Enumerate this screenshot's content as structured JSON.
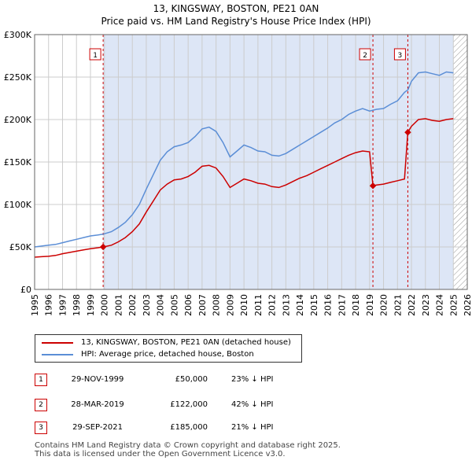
{
  "chart_data": {
    "type": "line",
    "title": "13, KINGSWAY, BOSTON, PE21 0AN",
    "subtitle": "Price paid vs. HM Land Registry's House Price Index (HPI)",
    "xlim": [
      1995,
      2026
    ],
    "ylim": [
      0,
      300000
    ],
    "x_ticks": [
      "1995",
      "1996",
      "1997",
      "1998",
      "1999",
      "2000",
      "2001",
      "2002",
      "2003",
      "2004",
      "2005",
      "2006",
      "2007",
      "2008",
      "2009",
      "2010",
      "2011",
      "2012",
      "2013",
      "2014",
      "2015",
      "2016",
      "2017",
      "2018",
      "2019",
      "2020",
      "2021",
      "2022",
      "2023",
      "2024",
      "2025",
      "2026"
    ],
    "y_ticks": [
      {
        "value": 0,
        "label": "£0"
      },
      {
        "value": 50000,
        "label": "£50K"
      },
      {
        "value": 100000,
        "label": "£100K"
      },
      {
        "value": 150000,
        "label": "£150K"
      },
      {
        "value": 200000,
        "label": "£200K"
      },
      {
        "value": 250000,
        "label": "£250K"
      },
      {
        "value": 300000,
        "label": "£300K"
      }
    ],
    "series": [
      {
        "name": "HPI: Average price, detached house, Boston",
        "color": "#5b8ed6",
        "points": [
          [
            1995.0,
            50000
          ],
          [
            1995.5,
            51000
          ],
          [
            1996.0,
            52000
          ],
          [
            1996.5,
            53000
          ],
          [
            1997.0,
            55000
          ],
          [
            1997.5,
            57000
          ],
          [
            1998.0,
            59000
          ],
          [
            1998.5,
            61000
          ],
          [
            1999.0,
            63000
          ],
          [
            1999.5,
            64000
          ],
          [
            1999.9,
            65000
          ],
          [
            2000.5,
            68000
          ],
          [
            2001.0,
            73000
          ],
          [
            2001.5,
            79000
          ],
          [
            2002.0,
            88000
          ],
          [
            2002.5,
            100000
          ],
          [
            2003.0,
            118000
          ],
          [
            2003.5,
            135000
          ],
          [
            2004.0,
            152000
          ],
          [
            2004.5,
            162000
          ],
          [
            2005.0,
            168000
          ],
          [
            2005.5,
            170000
          ],
          [
            2006.0,
            173000
          ],
          [
            2006.5,
            180000
          ],
          [
            2007.0,
            189000
          ],
          [
            2007.5,
            191000
          ],
          [
            2008.0,
            186000
          ],
          [
            2008.5,
            173000
          ],
          [
            2009.0,
            156000
          ],
          [
            2009.5,
            163000
          ],
          [
            2010.0,
            170000
          ],
          [
            2010.5,
            167000
          ],
          [
            2011.0,
            163000
          ],
          [
            2011.5,
            162000
          ],
          [
            2012.0,
            158000
          ],
          [
            2012.5,
            157000
          ],
          [
            2013.0,
            160000
          ],
          [
            2013.5,
            165000
          ],
          [
            2014.0,
            170000
          ],
          [
            2014.5,
            175000
          ],
          [
            2015.0,
            180000
          ],
          [
            2015.5,
            185000
          ],
          [
            2016.0,
            190000
          ],
          [
            2016.5,
            196000
          ],
          [
            2017.0,
            200000
          ],
          [
            2017.5,
            206000
          ],
          [
            2018.0,
            210000
          ],
          [
            2018.5,
            213000
          ],
          [
            2019.0,
            210000
          ],
          [
            2019.5,
            212000
          ],
          [
            2020.0,
            213000
          ],
          [
            2020.5,
            218000
          ],
          [
            2021.0,
            222000
          ],
          [
            2021.5,
            232000
          ],
          [
            2021.75,
            235000
          ],
          [
            2022.0,
            245000
          ],
          [
            2022.5,
            255000
          ],
          [
            2023.0,
            256000
          ],
          [
            2023.5,
            254000
          ],
          [
            2024.0,
            252000
          ],
          [
            2024.5,
            256000
          ],
          [
            2025.0,
            255000
          ]
        ]
      },
      {
        "name": "13, KINGSWAY, BOSTON, PE21 0AN (detached house)",
        "color": "#cc0000",
        "points": [
          [
            1995.0,
            38000
          ],
          [
            1995.5,
            38500
          ],
          [
            1996.0,
            39000
          ],
          [
            1996.5,
            40000
          ],
          [
            1997.0,
            42000
          ],
          [
            1997.5,
            43500
          ],
          [
            1998.0,
            45000
          ],
          [
            1998.5,
            46500
          ],
          [
            1999.0,
            48000
          ],
          [
            1999.5,
            49000
          ],
          [
            1999.91,
            50000
          ],
          [
            2000.5,
            52000
          ],
          [
            2001.0,
            56000
          ],
          [
            2001.5,
            61000
          ],
          [
            2002.0,
            68000
          ],
          [
            2002.5,
            77000
          ],
          [
            2003.0,
            91000
          ],
          [
            2003.5,
            104000
          ],
          [
            2004.0,
            117000
          ],
          [
            2004.5,
            124000
          ],
          [
            2005.0,
            129000
          ],
          [
            2005.5,
            130000
          ],
          [
            2006.0,
            133000
          ],
          [
            2006.5,
            138000
          ],
          [
            2007.0,
            145000
          ],
          [
            2007.5,
            146000
          ],
          [
            2008.0,
            143000
          ],
          [
            2008.5,
            133000
          ],
          [
            2009.0,
            120000
          ],
          [
            2009.5,
            125000
          ],
          [
            2010.0,
            130000
          ],
          [
            2010.5,
            128000
          ],
          [
            2011.0,
            125000
          ],
          [
            2011.5,
            124000
          ],
          [
            2012.0,
            121000
          ],
          [
            2012.5,
            120000
          ],
          [
            2013.0,
            123000
          ],
          [
            2013.5,
            127000
          ],
          [
            2014.0,
            131000
          ],
          [
            2014.5,
            134000
          ],
          [
            2015.0,
            138000
          ],
          [
            2015.5,
            142000
          ],
          [
            2016.0,
            146000
          ],
          [
            2016.5,
            150000
          ],
          [
            2017.0,
            154000
          ],
          [
            2017.5,
            158000
          ],
          [
            2018.0,
            161000
          ],
          [
            2018.5,
            163000
          ],
          [
            2019.0,
            162000
          ],
          [
            2019.24,
            122000
          ],
          [
            2019.5,
            123000
          ],
          [
            2020.0,
            124000
          ],
          [
            2020.5,
            126000
          ],
          [
            2021.0,
            128000
          ],
          [
            2021.5,
            130000
          ],
          [
            2021.74,
            185000
          ],
          [
            2022.0,
            192000
          ],
          [
            2022.5,
            200000
          ],
          [
            2023.0,
            201000
          ],
          [
            2023.5,
            199000
          ],
          [
            2024.0,
            198000
          ],
          [
            2024.5,
            200000
          ],
          [
            2025.0,
            201000
          ]
        ]
      }
    ],
    "sale_markers": [
      {
        "label": "1",
        "x": 1999.91,
        "value": 50000
      },
      {
        "label": "2",
        "x": 2019.24,
        "value": 122000
      },
      {
        "label": "3",
        "x": 2021.74,
        "value": 185000
      }
    ],
    "shaded_range": [
      1999.91,
      2025.0
    ],
    "hatched_from": 2025.0,
    "colors": {
      "shade": "#dde6f6",
      "grid": "#cccccc",
      "marker_border": "#cc0000"
    }
  },
  "legend": [
    {
      "label": "13, KINGSWAY, BOSTON, PE21 0AN (detached house)",
      "color": "#cc0000"
    },
    {
      "label": "HPI: Average price, detached house, Boston",
      "color": "#5b8ed6"
    }
  ],
  "sales": [
    {
      "num": "1",
      "date": "29-NOV-1999",
      "price": "£50,000",
      "hpi": "23% ↓ HPI"
    },
    {
      "num": "2",
      "date": "28-MAR-2019",
      "price": "£122,000",
      "hpi": "42% ↓ HPI"
    },
    {
      "num": "3",
      "date": "29-SEP-2021",
      "price": "£185,000",
      "hpi": "21% ↓ HPI"
    }
  ],
  "footer": {
    "line1": "Contains HM Land Registry data © Crown copyright and database right 2025.",
    "line2": "This data is licensed under the Open Government Licence v3.0."
  }
}
